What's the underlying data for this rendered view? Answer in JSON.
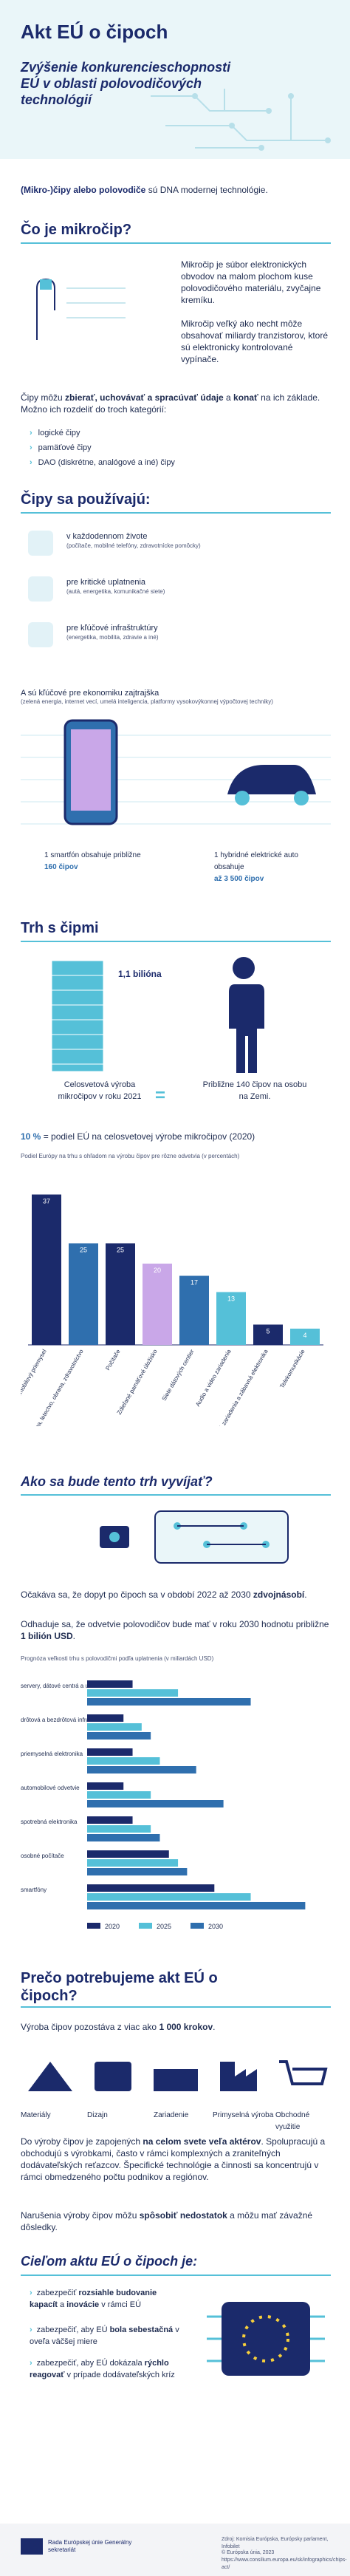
{
  "header": {
    "title": "Akt EÚ o čipoch",
    "subtitle": "Zvýšenie konkurencieschopnosti EÚ v oblasti polovodičových technológií"
  },
  "intro": {
    "bold": "(Mikro-)čipy alebo polovodiče",
    "rest": " sú DNA modernej technológie."
  },
  "what": {
    "heading": "Čo je mikročip?",
    "p1": "Mikročip je súbor elektronických obvodov na malom plochom kuse polovodičového materiálu, zvyčajne kremíku.",
    "p2": "Mikročip veľký ako necht môže obsahovať miliardy tranzistorov, ktoré sú elektronicky kontrolované vypínače.",
    "p3_a": "Čipy môžu ",
    "p3_b": "zbierať, uchovávať a spracúvať údaje",
    "p3_c": " a ",
    "p3_d": "konať",
    "p3_e": " na ich základe. Možno ich rozdeliť do troch kategórií:",
    "cats": [
      "logické čipy",
      "pamäťové čipy",
      "DAO (diskrétne, analógové a iné) čipy"
    ]
  },
  "used": {
    "heading": "Čipy sa používajú:",
    "items": [
      {
        "title": "v každodennom živote",
        "sub": "(počítače, mobilné telefóny, zdravotnícke pomôcky)"
      },
      {
        "title": "pre kritické uplatnenia",
        "sub": "(autá, energetika, komunikačné siete)"
      },
      {
        "title": "pre kľúčové infraštruktúry",
        "sub": "(energetika, mobilita, zdravie a iné)"
      }
    ],
    "key_line": "A sú kľúčové pre ekonomiku zajtrajška",
    "key_sub": "(zelená energia, internet vecí, umelá inteligencia, platformy vysokovýkonnej výpočtovej techniky)",
    "smartphone_a": "1 smartfón obsahuje približne",
    "smartphone_b": "160 čipov",
    "car_a": "1 hybridné elektrické auto obsahuje",
    "car_b": "až 3 500 čipov"
  },
  "market": {
    "heading": "Trh s čipmi",
    "stack_label": "1,1 bilióna",
    "left_text": "Celosvetová výroba mikročipov v roku 2021",
    "equals": "=",
    "right_text": "Približne 140 čipov na osobu na Zemi.",
    "share_a": "10 %",
    "share_b": " = podiel EÚ na celosvetovej výrobe mikročipov (2020)",
    "chart_title": "Podiel Európy na trhu s ohľadom na výrobu čipov pre rôzne odvetvia (v percentách)"
  },
  "chart_data": {
    "type": "bar",
    "title": "Podiel Európy na trhu s ohľadom na výrobu čipov pre rôzne odvetvia (v percentách)",
    "categories": [
      "Automobilový priemysel",
      "Výroba, letectvo, obrana, zdravotníctvo",
      "Počítače",
      "Zdieľané pamäťové úložisko",
      "Siete dátových centier",
      "Audio a video zariadenia",
      "Herné zariadenia a zábavná elektronika",
      "Telekomunikácie"
    ],
    "values": [
      37,
      25,
      25,
      20,
      17,
      13,
      5,
      4
    ],
    "ylim": [
      0,
      40
    ]
  },
  "growth": {
    "heading": "Ako sa bude tento trh vyvíjať?",
    "p1_a": "Očakáva sa, že dopyt po čipoch sa v období 2022 až 2030 ",
    "p1_b": "zdvojnásobí",
    "p1_c": ".",
    "p2_a": "Odhaduje sa, že odvetvie polovodičov bude mať v roku 2030 hodnotu približne ",
    "p2_b": "1 bilión USD",
    "p2_c": ".",
    "chart_title": "Prognóza veľkosti trhu s polovodičmi podľa uplatnenia (v miliardách USD)"
  },
  "growth_chart": {
    "type": "bar",
    "categories": [
      "servery, dátové centrá a uchovávanie dát",
      "drôtová a bezdrôtová infraštruktúra",
      "priemyselná elektronika",
      "automobilové odvetvie",
      "spotrebná elektronika",
      "osobné počítače",
      "smartfóny"
    ],
    "series": [
      {
        "name": "2020",
        "values": [
          50,
          40,
          50,
          40,
          50,
          90,
          140
        ]
      },
      {
        "name": "2025",
        "values": [
          100,
          60,
          80,
          70,
          70,
          100,
          180
        ]
      },
      {
        "name": "2030",
        "values": [
          180,
          70,
          120,
          150,
          80,
          110,
          240
        ]
      }
    ],
    "colors": [
      "#1b2a6b",
      "#55c0d8",
      "#2f6fae"
    ]
  },
  "why": {
    "heading": "Prečo potrebujeme akt EÚ o čipoch?",
    "p1_a": "Výroba čipov pozostáva z viac ako ",
    "p1_b": "1 000 krokov",
    "p1_c": ".",
    "steps": [
      "Materiály",
      "Dizajn",
      "Zariadenie",
      "Primyselná výroba",
      "Obchodné využitie"
    ],
    "p2_a": "Do výroby čipov je zapojených ",
    "p2_b": "na celom svete veľa aktérov",
    "p2_c": ". Spolupracujú a obchodujú s výrobkami, často v rámci komplexných a zraniteľných dodávateľských reťazcov. Špecifické technológie a činnosti sa koncentrujú v rámci obmedzeného počtu podnikov a regiónov.",
    "p3_a": "Narušenia výroby čipov môžu ",
    "p3_b": "spôsobiť nedostatok",
    "p3_c": " a môžu mať závažné dôsledky."
  },
  "goals": {
    "heading": "Cieľom aktu EÚ o čipoch je:",
    "items": [
      {
        "a": "zabezpečiť ",
        "b": "rozsiahle budovanie kapacít",
        "c": " a ",
        "d": "inovácie",
        "e": " v rámci EÚ"
      },
      {
        "a": "zabezpečiť, aby EÚ ",
        "b": "bola sebestačná",
        "c": " v oveľa väčšej miere",
        "d": "",
        "e": ""
      },
      {
        "a": "zabezpečiť, aby EÚ dokázala ",
        "b": "rýchlo reagovať",
        "c": " v prípade dodávateľských kríz",
        "d": "",
        "e": ""
      }
    ]
  },
  "footer": {
    "org": "Rada Európskej únie Generálny sekretariát",
    "left_small": "Zdroj: Komisia Európska, Európsky parlament, Infobilet",
    "right_small": "© Európska únia, 2023",
    "url": "https://www.consilium.europa.eu/sk/infographics/chips-act/"
  }
}
